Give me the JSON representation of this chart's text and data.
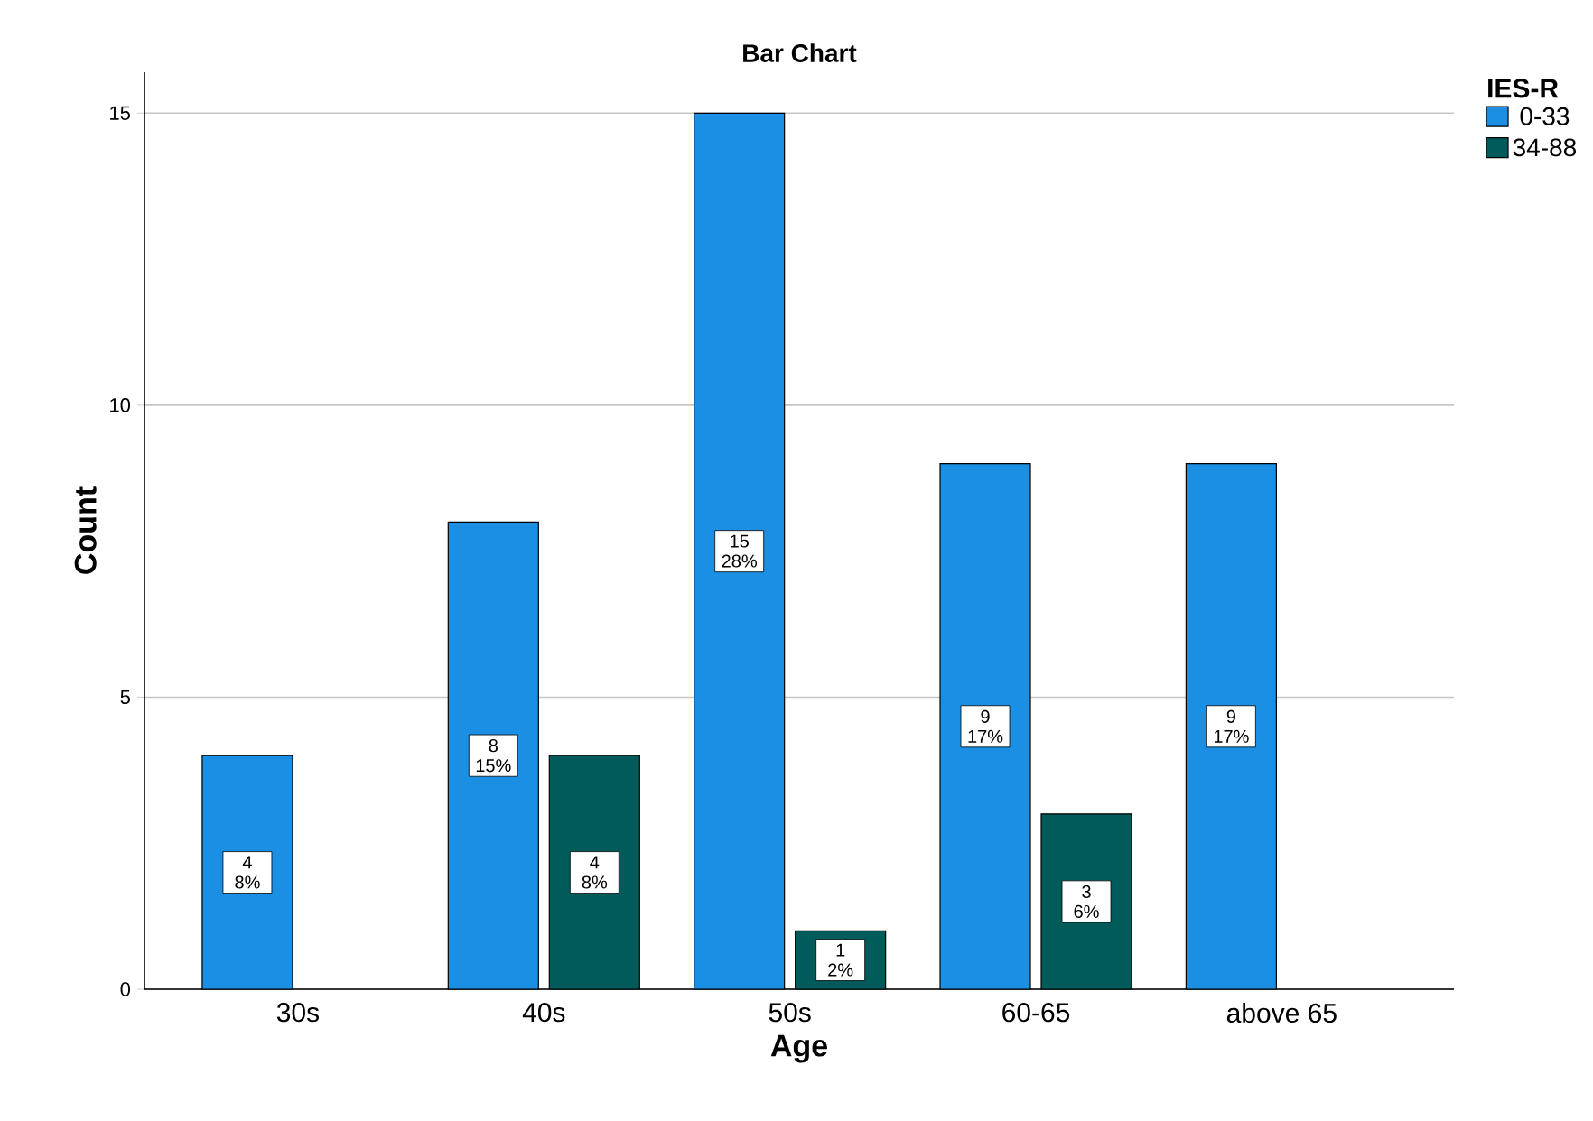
{
  "chart_data": {
    "type": "bar",
    "title": "Bar Chart",
    "xlabel": "Age",
    "ylabel": "Count",
    "legend_title": "IES-R",
    "categories": [
      "30s",
      "40s",
      "50s",
      "60-65",
      "above 65"
    ],
    "series": [
      {
        "name": "0-33",
        "color": "#1a8fe3",
        "values": [
          4,
          8,
          15,
          9,
          9
        ],
        "value_labels": [
          "4 8%",
          "8 15%",
          "15 28%",
          "9 17%",
          "9 17%"
        ]
      },
      {
        "name": "34-88",
        "color": "#005b5a",
        "values": [
          null,
          4,
          1,
          3,
          null
        ],
        "value_labels": [
          null,
          "4 8%",
          "1 2%",
          "3 6%",
          null
        ]
      }
    ],
    "ylim": [
      0,
      15.7
    ],
    "yticks": [
      0,
      5,
      10,
      15
    ],
    "grid": "y",
    "legend": "top right"
  }
}
